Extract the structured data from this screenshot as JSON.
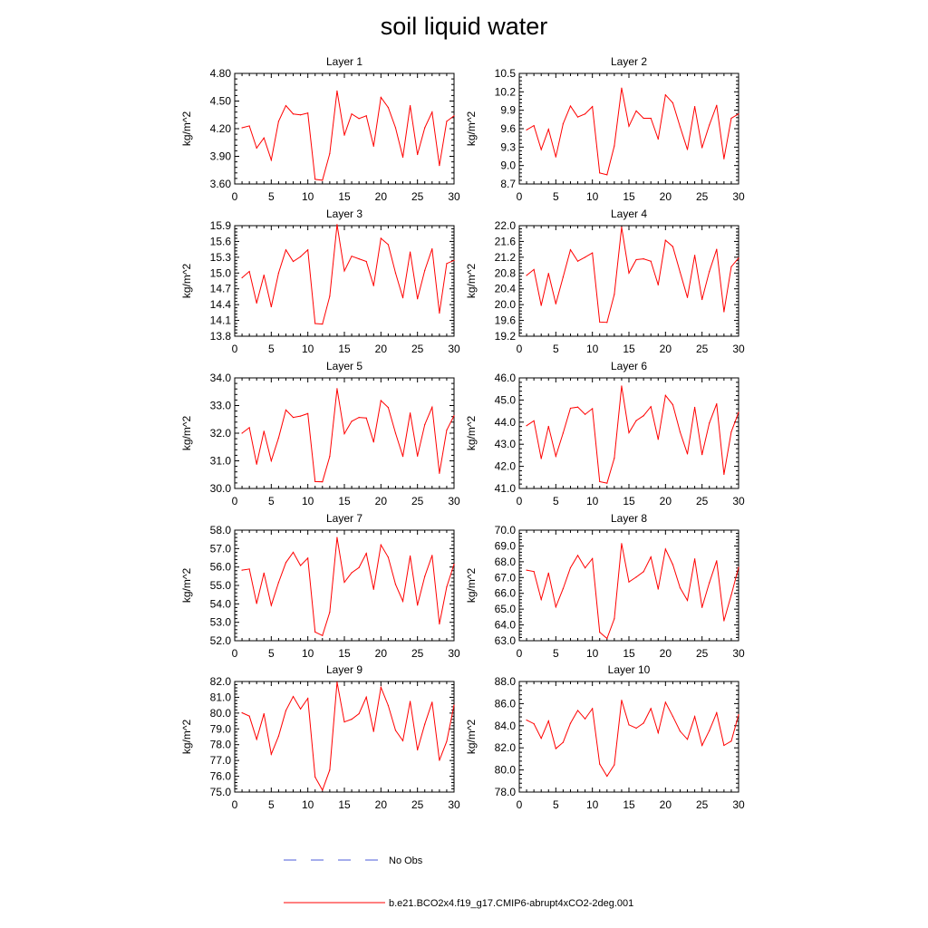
{
  "title": "soil liquid water",
  "legend": {
    "entries": [
      {
        "label": "No Obs",
        "color": "#4b5bd8",
        "style": "dashed"
      },
      {
        "label": "b.e21.BCO2x4.f19_g17.CMIP6-abrupt4xCO2-2deg.001",
        "color": "#ff0000",
        "style": "solid"
      }
    ]
  },
  "chart_data": [
    {
      "type": "line",
      "title": "Layer 1",
      "ylabel": "kg/m^2",
      "xlim": [
        0,
        30
      ],
      "ylim": [
        3.6,
        4.8
      ],
      "xticks": [
        "0",
        "5",
        "10",
        "15",
        "20",
        "25",
        "30"
      ],
      "yticks": [
        "3.60",
        "3.90",
        "4.20",
        "4.50",
        "4.80"
      ],
      "x": [
        1,
        2,
        3,
        4,
        5,
        6,
        7,
        8,
        9,
        10,
        11,
        12,
        13,
        14,
        15,
        16,
        17,
        18,
        19,
        20,
        21,
        22,
        23,
        24,
        25,
        26,
        27,
        28,
        29,
        30
      ],
      "series": [
        {
          "name": "b.e21.BCO2x4.f19_g17.CMIP6-abrupt4xCO2-2deg.001",
          "values": [
            4.21,
            4.23,
            3.99,
            4.1,
            3.86,
            4.28,
            4.45,
            4.36,
            4.35,
            4.37,
            3.65,
            3.64,
            3.93,
            4.61,
            4.13,
            4.36,
            4.31,
            4.34,
            4.01,
            4.54,
            4.43,
            4.21,
            3.89,
            4.45,
            3.92,
            4.21,
            4.38,
            3.8,
            4.28,
            4.34
          ]
        }
      ]
    },
    {
      "type": "line",
      "title": "Layer 2",
      "ylabel": "kg/m^2",
      "xlim": [
        0,
        30
      ],
      "ylim": [
        8.7,
        10.5
      ],
      "xticks": [
        "0",
        "5",
        "10",
        "15",
        "20",
        "25",
        "30"
      ],
      "yticks": [
        "8.7",
        "9.0",
        "9.3",
        "9.6",
        "9.9",
        "10.2",
        "10.5"
      ],
      "x": [
        1,
        2,
        3,
        4,
        5,
        6,
        7,
        8,
        9,
        10,
        11,
        12,
        13,
        14,
        15,
        16,
        17,
        18,
        19,
        20,
        21,
        22,
        23,
        24,
        25,
        26,
        27,
        28,
        29,
        30
      ],
      "series": [
        {
          "name": "b.e21.BCO2x4.f19_g17.CMIP6-abrupt4xCO2-2deg.001",
          "values": [
            9.58,
            9.65,
            9.26,
            9.59,
            9.14,
            9.68,
            9.97,
            9.79,
            9.84,
            9.96,
            8.88,
            8.85,
            9.32,
            10.26,
            9.64,
            9.89,
            9.77,
            9.77,
            9.43,
            10.15,
            10.02,
            9.63,
            9.26,
            9.96,
            9.29,
            9.66,
            9.98,
            9.11,
            9.77,
            9.84
          ]
        }
      ]
    },
    {
      "type": "line",
      "title": "Layer 3",
      "ylabel": "kg/m^2",
      "xlim": [
        0,
        30
      ],
      "ylim": [
        13.8,
        15.9
      ],
      "xticks": [
        "0",
        "5",
        "10",
        "15",
        "20",
        "25",
        "30"
      ],
      "yticks": [
        "13.8",
        "14.1",
        "14.4",
        "14.7",
        "15.0",
        "15.3",
        "15.6",
        "15.9"
      ],
      "x": [
        1,
        2,
        3,
        4,
        5,
        6,
        7,
        8,
        9,
        10,
        11,
        12,
        13,
        14,
        15,
        16,
        17,
        18,
        19,
        20,
        21,
        22,
        23,
        24,
        25,
        26,
        27,
        28,
        29,
        30
      ],
      "series": [
        {
          "name": "b.e21.BCO2x4.f19_g17.CMIP6-abrupt4xCO2-2deg.001",
          "values": [
            14.91,
            15.03,
            14.43,
            14.96,
            14.36,
            15.0,
            15.44,
            15.22,
            15.31,
            15.44,
            14.04,
            14.03,
            14.56,
            15.92,
            15.04,
            15.32,
            15.27,
            15.22,
            14.76,
            15.66,
            15.54,
            15.0,
            14.53,
            15.4,
            14.51,
            15.05,
            15.46,
            14.24,
            15.18,
            15.24
          ]
        }
      ]
    },
    {
      "type": "line",
      "title": "Layer 4",
      "ylabel": "kg/m^2",
      "xlim": [
        0,
        30
      ],
      "ylim": [
        19.2,
        22.0
      ],
      "xticks": [
        "0",
        "5",
        "10",
        "15",
        "20",
        "25",
        "30"
      ],
      "yticks": [
        "19.2",
        "19.6",
        "20.0",
        "20.4",
        "20.8",
        "21.2",
        "21.6",
        "22.0"
      ],
      "x": [
        1,
        2,
        3,
        4,
        5,
        6,
        7,
        8,
        9,
        10,
        11,
        12,
        13,
        14,
        15,
        16,
        17,
        18,
        19,
        20,
        21,
        22,
        23,
        24,
        25,
        26,
        27,
        28,
        29,
        30
      ],
      "series": [
        {
          "name": "b.e21.BCO2x4.f19_g17.CMIP6-abrupt4xCO2-2deg.001",
          "values": [
            20.74,
            20.89,
            19.98,
            20.79,
            20.02,
            20.7,
            21.39,
            21.1,
            21.2,
            21.31,
            19.56,
            19.55,
            20.26,
            21.96,
            20.8,
            21.14,
            21.16,
            21.1,
            20.5,
            21.63,
            21.47,
            20.82,
            20.18,
            21.25,
            20.13,
            20.84,
            21.4,
            19.82,
            20.96,
            21.18
          ]
        }
      ]
    },
    {
      "type": "line",
      "title": "Layer 5",
      "ylabel": "kg/m^2",
      "xlim": [
        0,
        30
      ],
      "ylim": [
        30.0,
        34.0
      ],
      "xticks": [
        "0",
        "5",
        "10",
        "15",
        "20",
        "25",
        "30"
      ],
      "yticks": [
        "30.0",
        "31.0",
        "32.0",
        "33.0",
        "34.0"
      ],
      "x": [
        1,
        2,
        3,
        4,
        5,
        6,
        7,
        8,
        9,
        10,
        11,
        12,
        13,
        14,
        15,
        16,
        17,
        18,
        19,
        20,
        21,
        22,
        23,
        24,
        25,
        26,
        27,
        28,
        29,
        30
      ],
      "series": [
        {
          "name": "b.e21.BCO2x4.f19_g17.CMIP6-abrupt4xCO2-2deg.001",
          "values": [
            32.0,
            32.2,
            30.88,
            32.07,
            31.0,
            31.83,
            32.84,
            32.57,
            32.62,
            32.71,
            30.25,
            30.24,
            31.16,
            33.61,
            31.98,
            32.43,
            32.57,
            32.55,
            31.68,
            33.18,
            32.93,
            32.0,
            31.16,
            32.73,
            31.17,
            32.31,
            32.94,
            30.55,
            32.11,
            32.63
          ]
        }
      ]
    },
    {
      "type": "line",
      "title": "Layer 6",
      "ylabel": "kg/m^2",
      "xlim": [
        0,
        30
      ],
      "ylim": [
        41.0,
        46.0
      ],
      "xticks": [
        "0",
        "5",
        "10",
        "15",
        "20",
        "25",
        "30"
      ],
      "yticks": [
        "41.0",
        "42.0",
        "43.0",
        "44.0",
        "45.0",
        "46.0"
      ],
      "x": [
        1,
        2,
        3,
        4,
        5,
        6,
        7,
        8,
        9,
        10,
        11,
        12,
        13,
        14,
        15,
        16,
        17,
        18,
        19,
        20,
        21,
        22,
        23,
        24,
        25,
        26,
        27,
        28,
        29,
        30
      ],
      "series": [
        {
          "name": "b.e21.BCO2x4.f19_g17.CMIP6-abrupt4xCO2-2deg.001",
          "values": [
            43.84,
            44.06,
            42.35,
            43.81,
            42.46,
            43.51,
            44.63,
            44.68,
            44.35,
            44.61,
            41.31,
            41.24,
            42.37,
            45.63,
            43.52,
            44.07,
            44.29,
            44.7,
            43.22,
            45.21,
            44.79,
            43.55,
            42.56,
            44.67,
            42.53,
            43.96,
            44.83,
            41.64,
            43.56,
            44.44
          ]
        }
      ]
    },
    {
      "type": "line",
      "title": "Layer 7",
      "ylabel": "kg/m^2",
      "xlim": [
        0,
        30
      ],
      "ylim": [
        52.0,
        58.0
      ],
      "xticks": [
        "0",
        "5",
        "10",
        "15",
        "20",
        "25",
        "30"
      ],
      "yticks": [
        "52.0",
        "53.0",
        "54.0",
        "55.0",
        "56.0",
        "57.0",
        "58.0"
      ],
      "x": [
        1,
        2,
        3,
        4,
        5,
        6,
        7,
        8,
        9,
        10,
        11,
        12,
        13,
        14,
        15,
        16,
        17,
        18,
        19,
        20,
        21,
        22,
        23,
        24,
        25,
        26,
        27,
        28,
        29,
        30
      ],
      "series": [
        {
          "name": "b.e21.BCO2x4.f19_g17.CMIP6-abrupt4xCO2-2deg.001",
          "values": [
            55.83,
            55.89,
            54.02,
            55.67,
            53.92,
            55.16,
            56.24,
            56.8,
            56.08,
            56.48,
            52.47,
            52.28,
            53.55,
            57.6,
            55.17,
            55.69,
            55.97,
            56.74,
            54.79,
            57.2,
            56.53,
            55.06,
            54.14,
            56.6,
            53.93,
            55.49,
            56.63,
            52.91,
            54.92,
            56.15
          ]
        }
      ]
    },
    {
      "type": "line",
      "title": "Layer 8",
      "ylabel": "kg/m^2",
      "xlim": [
        0,
        30
      ],
      "ylim": [
        63.0,
        70.0
      ],
      "xticks": [
        "0",
        "5",
        "10",
        "15",
        "20",
        "25",
        "30"
      ],
      "yticks": [
        "63.0",
        "64.0",
        "65.0",
        "66.0",
        "67.0",
        "68.0",
        "69.0",
        "70.0"
      ],
      "x": [
        1,
        2,
        3,
        4,
        5,
        6,
        7,
        8,
        9,
        10,
        11,
        12,
        13,
        14,
        15,
        16,
        17,
        18,
        19,
        20,
        21,
        22,
        23,
        24,
        25,
        26,
        27,
        28,
        29,
        30
      ],
      "series": [
        {
          "name": "b.e21.BCO2x4.f19_g17.CMIP6-abrupt4xCO2-2deg.001",
          "values": [
            67.47,
            67.38,
            65.61,
            67.28,
            65.14,
            66.3,
            67.62,
            68.4,
            67.61,
            68.2,
            63.54,
            63.14,
            64.39,
            69.15,
            66.72,
            67.03,
            67.37,
            68.3,
            66.27,
            68.8,
            67.82,
            66.35,
            65.55,
            68.18,
            65.11,
            66.67,
            68.06,
            64.26,
            65.9,
            67.64
          ]
        }
      ]
    },
    {
      "type": "line",
      "title": "Layer 9",
      "ylabel": "kg/m^2",
      "xlim": [
        0,
        30
      ],
      "ylim": [
        75.0,
        82.0
      ],
      "xticks": [
        "0",
        "5",
        "10",
        "15",
        "20",
        "25",
        "30"
      ],
      "yticks": [
        "75.0",
        "76.0",
        "77.0",
        "78.0",
        "79.0",
        "80.0",
        "81.0",
        "82.0"
      ],
      "x": [
        1,
        2,
        3,
        4,
        5,
        6,
        7,
        8,
        9,
        10,
        11,
        12,
        13,
        14,
        15,
        16,
        17,
        18,
        19,
        20,
        21,
        22,
        23,
        24,
        25,
        26,
        27,
        28,
        29,
        30
      ],
      "series": [
        {
          "name": "b.e21.BCO2x4.f19_g17.CMIP6-abrupt4xCO2-2deg.001",
          "values": [
            80.02,
            79.81,
            78.34,
            79.96,
            77.4,
            78.54,
            80.16,
            81.05,
            80.26,
            80.93,
            75.95,
            75.12,
            76.4,
            81.96,
            79.44,
            79.61,
            79.96,
            81.01,
            78.84,
            81.63,
            80.48,
            78.91,
            78.25,
            80.74,
            77.67,
            79.3,
            80.69,
            77.01,
            78.21,
            80.5
          ]
        }
      ]
    },
    {
      "type": "line",
      "title": "Layer 10",
      "ylabel": "kg/m^2",
      "xlim": [
        0,
        30
      ],
      "ylim": [
        78.0,
        88.0
      ],
      "xticks": [
        "0",
        "5",
        "10",
        "15",
        "20",
        "25",
        "30"
      ],
      "yticks": [
        "78.0",
        "80.0",
        "82.0",
        "84.0",
        "86.0",
        "88.0"
      ],
      "x": [
        1,
        2,
        3,
        4,
        5,
        6,
        7,
        8,
        9,
        10,
        11,
        12,
        13,
        14,
        15,
        16,
        17,
        18,
        19,
        20,
        21,
        22,
        23,
        24,
        25,
        26,
        27,
        28,
        29,
        30
      ],
      "series": [
        {
          "name": "b.e21.BCO2x4.f19_g17.CMIP6-abrupt4xCO2-2deg.001",
          "values": [
            84.51,
            84.18,
            82.86,
            84.43,
            81.93,
            82.5,
            84.22,
            85.38,
            84.62,
            85.55,
            80.53,
            79.43,
            80.46,
            86.3,
            84.08,
            83.78,
            84.24,
            85.55,
            83.36,
            86.12,
            84.85,
            83.5,
            82.77,
            84.83,
            82.22,
            83.56,
            85.17,
            82.22,
            82.61,
            84.99
          ]
        }
      ]
    }
  ]
}
